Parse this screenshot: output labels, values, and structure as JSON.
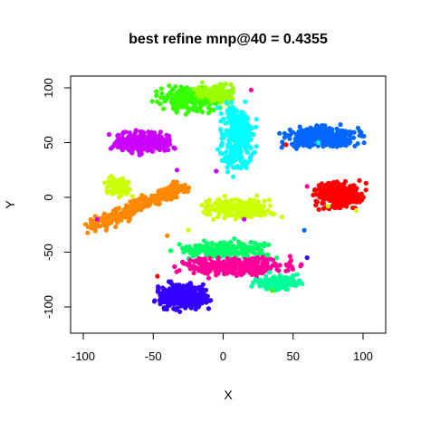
{
  "chart_data": {
    "type": "scatter",
    "title": "best refine mnp@40 = 0.4355",
    "xlabel": "X",
    "ylabel": "Y",
    "xlim": [
      -100,
      110
    ],
    "ylim": [
      -115,
      108
    ],
    "xticks": [
      -100,
      -50,
      0,
      50,
      100
    ],
    "yticks": [
      -100,
      -50,
      0,
      50,
      100
    ],
    "grid": false,
    "legend": "none",
    "clusters": [
      {
        "color": "#33ff00",
        "center": [
          -25,
          90
        ],
        "spread": [
          18,
          9
        ],
        "n": 260
      },
      {
        "color": "#99ff00",
        "center": [
          -5,
          95
        ],
        "spread": [
          12,
          7
        ],
        "n": 120
      },
      {
        "color": "#cc00ff",
        "center": [
          -58,
          50
        ],
        "spread": [
          17,
          8
        ],
        "n": 300
      },
      {
        "color": "#00ffff",
        "center": [
          10,
          55
        ],
        "spread": [
          10,
          26
        ],
        "n": 280
      },
      {
        "color": "#0066ff",
        "center": [
          70,
          55
        ],
        "spread": [
          22,
          8
        ],
        "n": 330
      },
      {
        "color": "#ff0000",
        "center": [
          83,
          2
        ],
        "spread": [
          14,
          10
        ],
        "n": 300
      },
      {
        "color": "#ccff00",
        "center": [
          -75,
          10
        ],
        "spread": [
          8,
          9
        ],
        "n": 80
      },
      {
        "color": "#ccff00",
        "center": [
          10,
          -10
        ],
        "spread": [
          22,
          8
        ],
        "n": 220
      },
      {
        "color": "#00ff66",
        "center": [
          0,
          -48
        ],
        "spread": [
          26,
          7
        ],
        "n": 220
      },
      {
        "color": "#ff0099",
        "center": [
          10,
          -63
        ],
        "spread": [
          32,
          7
        ],
        "n": 330
      },
      {
        "color": "#00ff99",
        "center": [
          40,
          -78
        ],
        "spread": [
          14,
          6
        ],
        "n": 140
      },
      {
        "color": "#3300ff",
        "center": [
          -28,
          -90
        ],
        "spread": [
          15,
          10
        ],
        "n": 320
      }
    ],
    "elongated_cluster": {
      "color": "#ff8800",
      "from": [
        -95,
        -28
      ],
      "to": [
        -28,
        10
      ],
      "width": 7,
      "n": 300
    },
    "stray_points": [
      {
        "x": 45,
        "y": 48,
        "color": "#ff0000"
      },
      {
        "x": 68,
        "y": 50,
        "color": "#00ffff"
      },
      {
        "x": 75,
        "y": -8,
        "color": "#ccff00"
      },
      {
        "x": 95,
        "y": -12,
        "color": "#ccff00"
      },
      {
        "x": -5,
        "y": 24,
        "color": "#cc00ff"
      },
      {
        "x": -33,
        "y": 25,
        "color": "#cc00ff"
      },
      {
        "x": 58,
        "y": -30,
        "color": "#0066ff"
      },
      {
        "x": -47,
        "y": -72,
        "color": "#ff0000"
      },
      {
        "x": 60,
        "y": -55,
        "color": "#3300ff"
      },
      {
        "x": 35,
        "y": -85,
        "color": "#33ff00"
      },
      {
        "x": 20,
        "y": 98,
        "color": "#ff0099"
      },
      {
        "x": -90,
        "y": -20,
        "color": "#cc00ff"
      },
      {
        "x": -25,
        "y": -30,
        "color": "#ccff00"
      },
      {
        "x": 60,
        "y": 10,
        "color": "#ff0099"
      },
      {
        "x": 15,
        "y": -20,
        "color": "#cc00ff"
      },
      {
        "x": -40,
        "y": -35,
        "color": "#ff8800"
      }
    ]
  }
}
